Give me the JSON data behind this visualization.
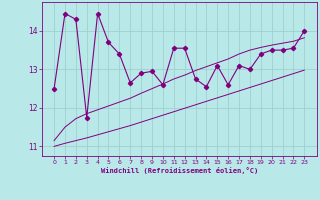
{
  "xlabel": "Windchill (Refroidissement éolien,°C)",
  "x_values": [
    0,
    1,
    2,
    3,
    4,
    5,
    6,
    7,
    8,
    9,
    10,
    11,
    12,
    13,
    14,
    15,
    16,
    17,
    18,
    19,
    20,
    21,
    22,
    23
  ],
  "y_main": [
    12.5,
    14.45,
    14.3,
    11.75,
    14.45,
    13.7,
    13.4,
    12.65,
    12.9,
    12.95,
    12.6,
    13.55,
    13.55,
    12.75,
    12.55,
    13.1,
    12.6,
    13.1,
    13.0,
    13.4,
    13.5,
    13.5,
    13.55,
    14.0
  ],
  "y_upper": [
    11.15,
    11.5,
    11.72,
    11.85,
    11.95,
    12.05,
    12.15,
    12.25,
    12.38,
    12.5,
    12.62,
    12.75,
    12.85,
    12.97,
    13.07,
    13.17,
    13.27,
    13.4,
    13.5,
    13.57,
    13.63,
    13.68,
    13.73,
    13.82
  ],
  "y_lower": [
    11.0,
    11.08,
    11.15,
    11.22,
    11.3,
    11.38,
    11.46,
    11.54,
    11.63,
    11.72,
    11.81,
    11.9,
    11.99,
    12.08,
    12.17,
    12.26,
    12.35,
    12.44,
    12.53,
    12.62,
    12.71,
    12.8,
    12.89,
    12.98
  ],
  "line_color": "#800080",
  "bg_color": "#b8e8e8",
  "grid_color": "#a0d0d0",
  "ylim": [
    10.75,
    14.75
  ],
  "yticks": [
    11,
    12,
    13,
    14
  ],
  "xticks": [
    0,
    1,
    2,
    3,
    4,
    5,
    6,
    7,
    8,
    9,
    10,
    11,
    12,
    13,
    14,
    15,
    16,
    17,
    18,
    19,
    20,
    21,
    22,
    23
  ]
}
